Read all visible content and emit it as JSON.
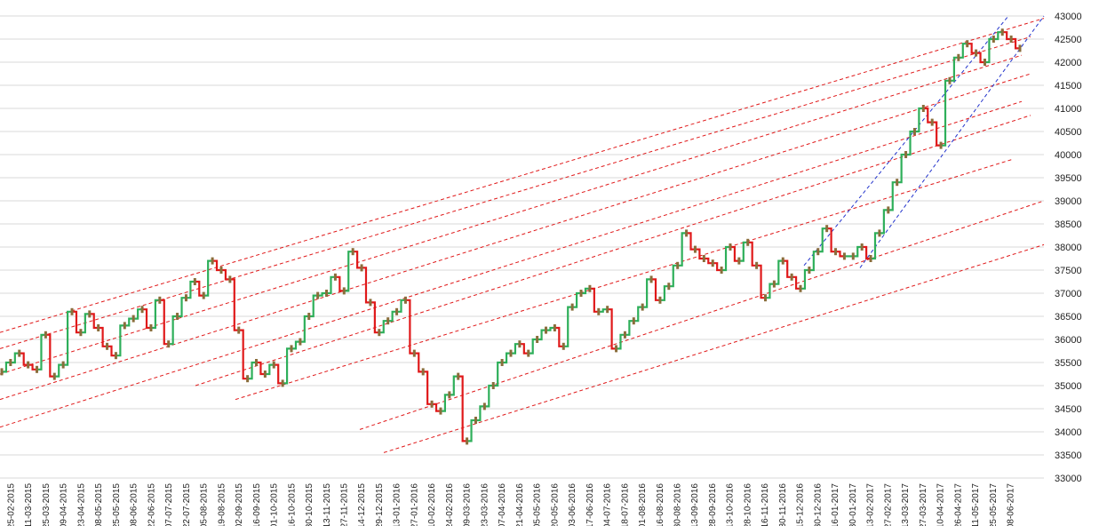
{
  "chart_data": {
    "type": "line",
    "title": "",
    "xlabel": "",
    "ylabel": "",
    "ylim": [
      33000,
      43000
    ],
    "y_ticks": [
      33000,
      33500,
      34000,
      34500,
      35000,
      35500,
      36000,
      36500,
      37000,
      37500,
      38000,
      38500,
      39000,
      39500,
      40000,
      40500,
      41000,
      41500,
      42000,
      42500,
      43000
    ],
    "y_axis_position": "right",
    "grid": "horizontal",
    "x_ticks": [
      "25-02-2015",
      "11-03-2015",
      "25-03-2015",
      "09-04-2015",
      "23-04-2015",
      "08-05-2015",
      "25-05-2015",
      "08-06-2015",
      "22-06-2015",
      "07-07-2015",
      "22-07-2015",
      "05-08-2015",
      "19-08-2015",
      "02-09-2015",
      "16-09-2015",
      "01-10-2015",
      "16-10-2015",
      "30-10-2015",
      "13-11-2015",
      "27-11-2015",
      "14-12-2015",
      "29-12-2015",
      "13-01-2016",
      "27-01-2016",
      "10-02-2016",
      "24-02-2016",
      "09-03-2016",
      "23-03-2016",
      "07-04-2016",
      "21-04-2016",
      "05-05-2016",
      "20-05-2016",
      "03-06-2016",
      "17-06-2016",
      "04-07-2016",
      "18-07-2016",
      "01-08-2016",
      "16-08-2016",
      "30-08-2016",
      "13-09-2016",
      "28-09-2016",
      "13-10-2016",
      "28-10-2016",
      "16-11-2016",
      "30-11-2016",
      "15-12-2016",
      "30-12-2016",
      "16-01-2017",
      "30-01-2017",
      "13-02-2017",
      "27-02-2017",
      "13-03-2017",
      "27-03-2017",
      "10-04-2017",
      "26-04-2017",
      "11-05-2017",
      "25-05-2017",
      "08-06-2017"
    ],
    "series": [
      {
        "values": [
          35300,
          35500,
          35700,
          35450,
          35350,
          36100,
          35200,
          35450,
          36600,
          36150,
          36550,
          36250,
          35850,
          35650,
          36300,
          36450,
          36650,
          36250,
          36850,
          35900,
          36500,
          36900,
          37250,
          36950,
          37700,
          37500,
          37300,
          36200,
          35150,
          35500,
          35250,
          35450,
          35050,
          35800,
          35950,
          36500,
          36950,
          37000,
          37350,
          37050,
          37900,
          37550,
          36800,
          36150,
          36400,
          36600,
          36850,
          35700,
          35300,
          34600,
          34450,
          34800,
          35200,
          33800,
          34250,
          34550,
          35000,
          35500,
          35700,
          35900,
          35700,
          36000,
          36200,
          36250,
          35850,
          36700,
          37000,
          37100,
          36600,
          36650,
          35800,
          36100,
          36400,
          36700,
          37300,
          36850,
          37150,
          37600,
          38300,
          37950,
          37750,
          37650,
          37500,
          38000,
          37700,
          38100,
          37600,
          36900,
          37200,
          37700,
          37350,
          37100,
          37500,
          37900,
          38400,
          37900,
          37800,
          37800,
          38000,
          37750,
          38300,
          38800,
          39400,
          40000,
          40500,
          41000,
          40700,
          40200,
          41600,
          42100,
          42400,
          42200,
          42000,
          42500,
          42650,
          42500,
          42300
        ],
        "color": "#2eaf5a",
        "down_color": "#e0191a"
      }
    ],
    "trend_lines_color": "#e0191a",
    "channel_lines_color": "#2233cc"
  }
}
